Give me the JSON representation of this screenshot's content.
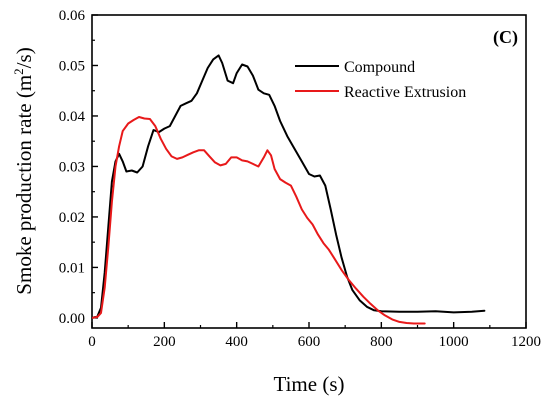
{
  "chart_data": {
    "type": "line",
    "panel_label": "(C)",
    "xlabel": "Time (s)",
    "ylabel_main": "Smoke production rate (m",
    "ylabel_sup": "2",
    "ylabel_end": "/s)",
    "xlim": [
      0,
      1200
    ],
    "ylim": [
      -0.002,
      0.06
    ],
    "x_ticks": [
      0,
      200,
      400,
      600,
      800,
      1000,
      1200
    ],
    "x_tick_labels": [
      "0",
      "200",
      "400",
      "600",
      "800",
      "1000",
      "1200"
    ],
    "y_ticks": [
      0.0,
      0.01,
      0.02,
      0.03,
      0.04,
      0.05,
      0.06
    ],
    "y_tick_labels": [
      "0.00",
      "0.01",
      "0.02",
      "0.03",
      "0.04",
      "0.05",
      "0.06"
    ],
    "grid": false,
    "legend_position": "top-right",
    "series": [
      {
        "name": "Compound",
        "color": "#000000",
        "points": [
          [
            0,
            0.0
          ],
          [
            15,
            0.0003
          ],
          [
            25,
            0.002
          ],
          [
            35,
            0.009
          ],
          [
            45,
            0.018
          ],
          [
            55,
            0.027
          ],
          [
            65,
            0.031
          ],
          [
            75,
            0.0325
          ],
          [
            85,
            0.031
          ],
          [
            95,
            0.029
          ],
          [
            110,
            0.0292
          ],
          [
            125,
            0.0288
          ],
          [
            140,
            0.03
          ],
          [
            155,
            0.034
          ],
          [
            170,
            0.0372
          ],
          [
            185,
            0.0368
          ],
          [
            200,
            0.0375
          ],
          [
            215,
            0.038
          ],
          [
            230,
            0.04
          ],
          [
            245,
            0.042
          ],
          [
            260,
            0.0425
          ],
          [
            275,
            0.043
          ],
          [
            290,
            0.0445
          ],
          [
            305,
            0.047
          ],
          [
            320,
            0.0495
          ],
          [
            335,
            0.0512
          ],
          [
            350,
            0.052
          ],
          [
            360,
            0.0505
          ],
          [
            375,
            0.047
          ],
          [
            390,
            0.0465
          ],
          [
            400,
            0.0485
          ],
          [
            415,
            0.0502
          ],
          [
            430,
            0.0498
          ],
          [
            445,
            0.048
          ],
          [
            460,
            0.0452
          ],
          [
            475,
            0.0445
          ],
          [
            490,
            0.0442
          ],
          [
            505,
            0.042
          ],
          [
            520,
            0.039
          ],
          [
            540,
            0.036
          ],
          [
            560,
            0.0335
          ],
          [
            580,
            0.031
          ],
          [
            600,
            0.0285
          ],
          [
            615,
            0.028
          ],
          [
            630,
            0.0282
          ],
          [
            645,
            0.0262
          ],
          [
            660,
            0.0215
          ],
          [
            675,
            0.0165
          ],
          [
            690,
            0.012
          ],
          [
            705,
            0.0082
          ],
          [
            720,
            0.0055
          ],
          [
            740,
            0.0035
          ],
          [
            760,
            0.0022
          ],
          [
            780,
            0.0015
          ],
          [
            800,
            0.0013
          ],
          [
            850,
            0.0012
          ],
          [
            900,
            0.0012
          ],
          [
            950,
            0.0013
          ],
          [
            1000,
            0.0011
          ],
          [
            1050,
            0.0012
          ],
          [
            1085,
            0.0014
          ]
        ]
      },
      {
        "name": "Reactive Extrusion",
        "color": "#e8191a",
        "points": [
          [
            0,
            0.0
          ],
          [
            15,
            0.0002
          ],
          [
            25,
            0.001
          ],
          [
            35,
            0.006
          ],
          [
            45,
            0.014
          ],
          [
            55,
            0.023
          ],
          [
            65,
            0.03
          ],
          [
            75,
            0.034
          ],
          [
            85,
            0.037
          ],
          [
            100,
            0.0385
          ],
          [
            115,
            0.0392
          ],
          [
            130,
            0.0398
          ],
          [
            145,
            0.0395
          ],
          [
            160,
            0.0394
          ],
          [
            175,
            0.038
          ],
          [
            190,
            0.0355
          ],
          [
            205,
            0.0335
          ],
          [
            220,
            0.032
          ],
          [
            235,
            0.0315
          ],
          [
            250,
            0.0318
          ],
          [
            265,
            0.0323
          ],
          [
            280,
            0.0328
          ],
          [
            295,
            0.0332
          ],
          [
            310,
            0.0332
          ],
          [
            325,
            0.032
          ],
          [
            340,
            0.0308
          ],
          [
            355,
            0.0302
          ],
          [
            370,
            0.0305
          ],
          [
            385,
            0.0318
          ],
          [
            400,
            0.0318
          ],
          [
            415,
            0.0312
          ],
          [
            430,
            0.031
          ],
          [
            445,
            0.0305
          ],
          [
            460,
            0.03
          ],
          [
            475,
            0.0318
          ],
          [
            485,
            0.0332
          ],
          [
            495,
            0.0322
          ],
          [
            505,
            0.0295
          ],
          [
            520,
            0.0275
          ],
          [
            535,
            0.0268
          ],
          [
            550,
            0.0262
          ],
          [
            565,
            0.024
          ],
          [
            580,
            0.0215
          ],
          [
            595,
            0.0198
          ],
          [
            610,
            0.0185
          ],
          [
            625,
            0.0165
          ],
          [
            640,
            0.0148
          ],
          [
            655,
            0.0135
          ],
          [
            670,
            0.0118
          ],
          [
            690,
            0.0095
          ],
          [
            710,
            0.0075
          ],
          [
            730,
            0.0058
          ],
          [
            750,
            0.0042
          ],
          [
            770,
            0.0028
          ],
          [
            790,
            0.0015
          ],
          [
            810,
            0.0005
          ],
          [
            830,
            -0.0003
          ],
          [
            850,
            -0.0008
          ],
          [
            870,
            -0.001
          ],
          [
            890,
            -0.0011
          ],
          [
            920,
            -0.0011
          ]
        ]
      }
    ]
  }
}
